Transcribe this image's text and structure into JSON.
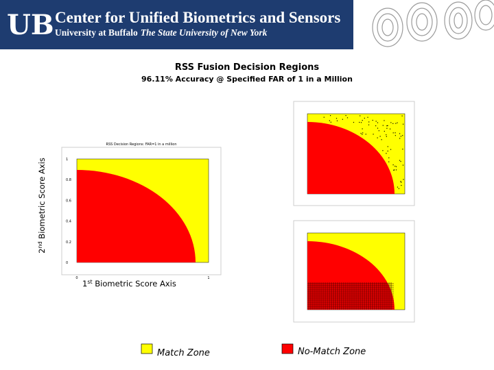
{
  "header": {
    "logo": "UB",
    "title": "Center for Unified Biometrics and Sensors",
    "subtitle_bold": "University at Buffalo",
    "subtitle_italic": "The State University of New York"
  },
  "slide": {
    "title": "RSS Fusion Decision Regions",
    "subtitle": "96.11% Accuracy @ Specified FAR of 1 in a Million"
  },
  "main_plot": {
    "title": "RSS Decision Regions: FAR=1 in a million",
    "yticks": [
      "1",
      "0.8",
      "0.6",
      "0.4",
      "0.2",
      "0"
    ],
    "xticks": [
      "0",
      "1"
    ],
    "y_axis_label": {
      "sup_number": "2",
      "sup": "nd",
      "text": " Biometric Score Axis"
    },
    "x_axis_label": {
      "sup_number": "1",
      "sup": "st",
      "text": " Biometric Score Axis"
    }
  },
  "legend": [
    {
      "label": "Match Zone"
    },
    {
      "label": "No-Match Zone"
    }
  ]
}
